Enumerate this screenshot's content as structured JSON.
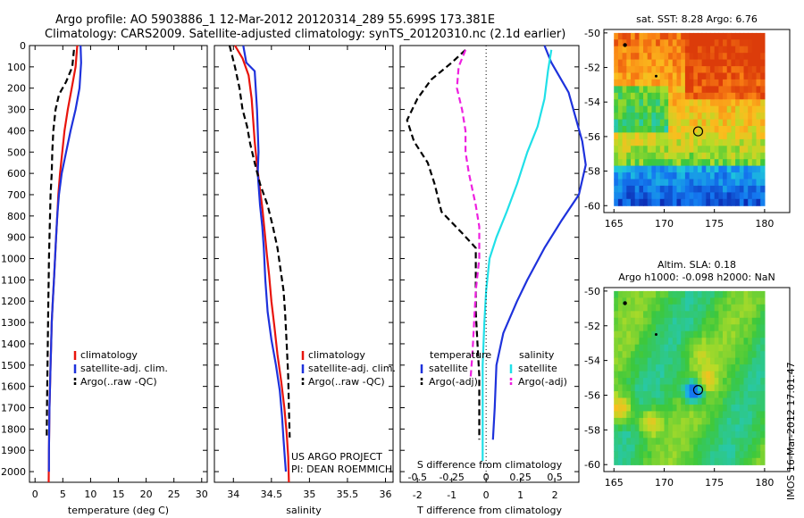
{
  "header": {
    "line1": "Argo profile: AO 5903886_1 12-Mar-2012 20120314_289 55.699S 173.381E",
    "line2": "Climatology: CARS2009. Satellite-adjusted climatology: synTS_20120310.nc (2.1d earlier)"
  },
  "depth_ticks": [
    "0",
    "100",
    "200",
    "300",
    "400",
    "500",
    "600",
    "700",
    "800",
    "900",
    "1000",
    "1100",
    "1200",
    "1300",
    "1400",
    "1500",
    "1600",
    "1700",
    "1800",
    "1900",
    "2000"
  ],
  "colors": {
    "climatology": "#e8140c",
    "satellite": "#1e32dc",
    "argo": "#000000",
    "cyan": "#20e0e8",
    "magenta": "#ee20e0"
  },
  "chart_data": [
    {
      "type": "line",
      "xlabel": "temperature (deg C)",
      "ylim": [
        2050,
        0
      ],
      "xlim": [
        -1,
        31
      ],
      "xticks": [
        "0",
        "5",
        "10",
        "15",
        "20",
        "25",
        "30"
      ],
      "legend": [
        "climatology",
        "satellite-adj. clim.",
        "Argo(..raw -QC)"
      ],
      "series": [
        {
          "name": "climatology",
          "color": "#e8140c",
          "style": "solid",
          "points": [
            [
              7.6,
              0
            ],
            [
              7.3,
              100
            ],
            [
              6.6,
              200
            ],
            [
              5.9,
              300
            ],
            [
              5.3,
              400
            ],
            [
              4.9,
              500
            ],
            [
              4.5,
              600
            ],
            [
              4.2,
              700
            ],
            [
              4.0,
              800
            ],
            [
              3.8,
              900
            ],
            [
              3.6,
              1000
            ],
            [
              3.4,
              1100
            ],
            [
              3.2,
              1200
            ],
            [
              3.0,
              1300
            ],
            [
              2.9,
              1400
            ],
            [
              2.8,
              1500
            ],
            [
              2.7,
              1600
            ],
            [
              2.6,
              1700
            ],
            [
              2.55,
              1800
            ],
            [
              2.5,
              1900
            ],
            [
              2.45,
              2050
            ]
          ]
        },
        {
          "name": "satellite-adj. clim.",
          "color": "#1e32dc",
          "style": "solid",
          "points": [
            [
              8.2,
              0
            ],
            [
              8.3,
              80
            ],
            [
              8.0,
              200
            ],
            [
              7.3,
              300
            ],
            [
              6.4,
              400
            ],
            [
              5.6,
              500
            ],
            [
              4.8,
              600
            ],
            [
              4.3,
              700
            ],
            [
              4.0,
              800
            ],
            [
              3.8,
              900
            ],
            [
              3.6,
              1000
            ],
            [
              3.4,
              1100
            ],
            [
              3.2,
              1200
            ],
            [
              3.0,
              1300
            ],
            [
              2.9,
              1400
            ],
            [
              2.8,
              1500
            ],
            [
              2.7,
              1600
            ],
            [
              2.6,
              1700
            ],
            [
              2.55,
              1800
            ],
            [
              2.5,
              1900
            ],
            [
              2.5,
              2000
            ]
          ]
        },
        {
          "name": "Argo(..raw -QC)",
          "color": "#000000",
          "style": "dashed",
          "points": [
            [
              7.0,
              20
            ],
            [
              6.7,
              100
            ],
            [
              5.6,
              170
            ],
            [
              4.3,
              230
            ],
            [
              3.7,
              300
            ],
            [
              3.3,
              400
            ],
            [
              3.1,
              500
            ],
            [
              3.0,
              600
            ],
            [
              2.8,
              700
            ],
            [
              2.7,
              800
            ],
            [
              2.6,
              900
            ],
            [
              2.5,
              1000
            ],
            [
              2.45,
              1100
            ],
            [
              2.4,
              1200
            ],
            [
              2.35,
              1300
            ],
            [
              2.3,
              1400
            ],
            [
              2.25,
              1500
            ],
            [
              2.2,
              1600
            ],
            [
              2.15,
              1700
            ],
            [
              2.1,
              1840
            ]
          ]
        }
      ]
    },
    {
      "type": "line",
      "xlabel": "salinity",
      "ylim": [
        2050,
        0
      ],
      "xlim": [
        33.75,
        36.1
      ],
      "xticks": [
        "34",
        "34.5",
        "35",
        "35.5",
        "36"
      ],
      "legend": [
        "climatology",
        "satellite-adj. clim.",
        "Argo(..raw -QC)"
      ],
      "annotation": [
        "US ARGO PROJECT",
        "PI: DEAN ROEMMICH"
      ],
      "series": [
        {
          "name": "climatology",
          "color": "#e8140c",
          "style": "solid",
          "points": [
            [
              34.02,
              0
            ],
            [
              34.12,
              60
            ],
            [
              34.2,
              140
            ],
            [
              34.24,
              250
            ],
            [
              34.26,
              350
            ],
            [
              34.28,
              450
            ],
            [
              34.31,
              560
            ],
            [
              34.34,
              650
            ],
            [
              34.38,
              760
            ],
            [
              34.41,
              870
            ],
            [
              34.44,
              980
            ],
            [
              34.47,
              1080
            ],
            [
              34.5,
              1200
            ],
            [
              34.54,
              1320
            ],
            [
              34.58,
              1450
            ],
            [
              34.63,
              1580
            ],
            [
              34.67,
              1700
            ],
            [
              34.7,
              1820
            ],
            [
              34.72,
              1930
            ],
            [
              34.73,
              2050
            ]
          ]
        },
        {
          "name": "satellite-adj. clim.",
          "color": "#1e32dc",
          "style": "solid",
          "points": [
            [
              34.13,
              0
            ],
            [
              34.17,
              80
            ],
            [
              34.28,
              120
            ],
            [
              34.31,
              300
            ],
            [
              34.33,
              500
            ],
            [
              34.32,
              600
            ],
            [
              34.35,
              750
            ],
            [
              34.38,
              850
            ],
            [
              34.4,
              950
            ],
            [
              34.42,
              1100
            ],
            [
              34.45,
              1250
            ],
            [
              34.5,
              1380
            ],
            [
              34.56,
              1500
            ],
            [
              34.61,
              1620
            ],
            [
              34.64,
              1740
            ],
            [
              34.66,
              1850
            ],
            [
              34.68,
              1950
            ],
            [
              34.69,
              2000
            ]
          ]
        },
        {
          "name": "Argo(..raw -QC)",
          "color": "#000000",
          "style": "dashed",
          "points": [
            [
              33.95,
              0
            ],
            [
              34.02,
              100
            ],
            [
              34.08,
              200
            ],
            [
              34.12,
              300
            ],
            [
              34.18,
              380
            ],
            [
              34.22,
              460
            ],
            [
              34.28,
              550
            ],
            [
              34.35,
              650
            ],
            [
              34.45,
              750
            ],
            [
              34.52,
              850
            ],
            [
              34.58,
              950
            ],
            [
              34.62,
              1050
            ],
            [
              34.66,
              1150
            ],
            [
              34.68,
              1250
            ],
            [
              34.7,
              1400
            ],
            [
              34.72,
              1550
            ],
            [
              34.73,
              1700
            ],
            [
              34.74,
              1840
            ]
          ]
        }
      ]
    },
    {
      "type": "line",
      "xlabel": "T difference from climatology",
      "xlabel_top": "S difference from climatology",
      "ylim": [
        2050,
        0
      ],
      "xlim": [
        -2.5,
        2.7
      ],
      "xticks_T": [
        "-2",
        "-1",
        "0",
        "1",
        "2"
      ],
      "xticks_S": [
        "-0.5",
        "-0.25",
        "0",
        "0.25",
        "0.5"
      ],
      "legend_titles": [
        "temperature",
        "salinity"
      ],
      "legend": [
        "satellite",
        "Argo(-adj)",
        "satellite",
        "Argo(-adj)"
      ],
      "series": [
        {
          "name": "temperature satellite",
          "color": "#1e32dc",
          "style": "solid",
          "points": [
            [
              1.7,
              0
            ],
            [
              1.9,
              80
            ],
            [
              2.4,
              220
            ],
            [
              2.8,
              450
            ],
            [
              2.9,
              560
            ],
            [
              2.7,
              700
            ],
            [
              2.2,
              820
            ],
            [
              1.7,
              950
            ],
            [
              1.2,
              1100
            ],
            [
              0.9,
              1200
            ],
            [
              0.5,
              1350
            ],
            [
              0.3,
              1500
            ],
            [
              0.25,
              1700
            ],
            [
              0.2,
              1850
            ]
          ]
        },
        {
          "name": "salinity satellite",
          "color": "#20e0e8",
          "style": "solid",
          "points": [
            [
              1.9,
              20
            ],
            [
              1.8,
              120
            ],
            [
              1.7,
              250
            ],
            [
              1.5,
              380
            ],
            [
              1.2,
              500
            ],
            [
              0.9,
              650
            ],
            [
              0.6,
              780
            ],
            [
              0.3,
              900
            ],
            [
              0.1,
              1000
            ],
            [
              0.0,
              1150
            ],
            [
              -0.05,
              1300
            ],
            [
              -0.1,
              1500
            ],
            [
              -0.1,
              1700
            ],
            [
              -0.1,
              1950
            ]
          ]
        },
        {
          "name": "temperature Argo(-adj)",
          "color": "#000000",
          "style": "dashed",
          "points": [
            [
              -0.6,
              20
            ],
            [
              -1.0,
              80
            ],
            [
              -1.6,
              160
            ],
            [
              -2.0,
              250
            ],
            [
              -2.3,
              350
            ],
            [
              -2.1,
              450
            ],
            [
              -1.7,
              550
            ],
            [
              -1.5,
              650
            ],
            [
              -1.3,
              780
            ],
            [
              -0.7,
              880
            ],
            [
              -0.3,
              950
            ],
            [
              -0.3,
              1100
            ],
            [
              -0.3,
              1250
            ],
            [
              -0.25,
              1400
            ],
            [
              -0.2,
              1550
            ],
            [
              -0.2,
              1700
            ],
            [
              -0.2,
              1850
            ]
          ]
        },
        {
          "name": "salinity Argo(-adj)",
          "color": "#ee20e0",
          "style": "dashed",
          "points": [
            [
              -0.6,
              20
            ],
            [
              -0.8,
              100
            ],
            [
              -0.85,
              200
            ],
            [
              -0.7,
              300
            ],
            [
              -0.6,
              400
            ],
            [
              -0.6,
              500
            ],
            [
              -0.5,
              600
            ],
            [
              -0.3,
              750
            ],
            [
              -0.2,
              850
            ],
            [
              -0.2,
              1000
            ],
            [
              -0.3,
              1150
            ],
            [
              -0.35,
              1300
            ],
            [
              -0.4,
              1450
            ],
            [
              -0.45,
              1560
            ]
          ]
        }
      ]
    },
    {
      "type": "heatmap",
      "title": "sat. SST: 8.28 Argo: 6.76",
      "xlim": [
        164,
        182.5
      ],
      "ylim": [
        -60.4,
        -49.8
      ],
      "xticks": [
        "165",
        "170",
        "175",
        "180"
      ],
      "yticks": [
        "-50",
        "-52",
        "-54",
        "-56",
        "-58",
        "-60"
      ],
      "marker": {
        "lon": 173.381,
        "lat": -55.699
      }
    },
    {
      "type": "heatmap",
      "title": "Altim. SLA: 0.18",
      "subtitle": "Argo h1000: -0.098 h2000: NaN",
      "xlim": [
        164,
        182.5
      ],
      "ylim": [
        -60.4,
        -49.8
      ],
      "xticks": [
        "165",
        "170",
        "175",
        "180"
      ],
      "yticks": [
        "-50",
        "-52",
        "-54",
        "-56",
        "-58",
        "-60"
      ],
      "marker": {
        "lon": 173.381,
        "lat": -55.699
      }
    }
  ],
  "footer": {
    "stamp": "IMOS 16-Mar-2012 17:01:47"
  }
}
